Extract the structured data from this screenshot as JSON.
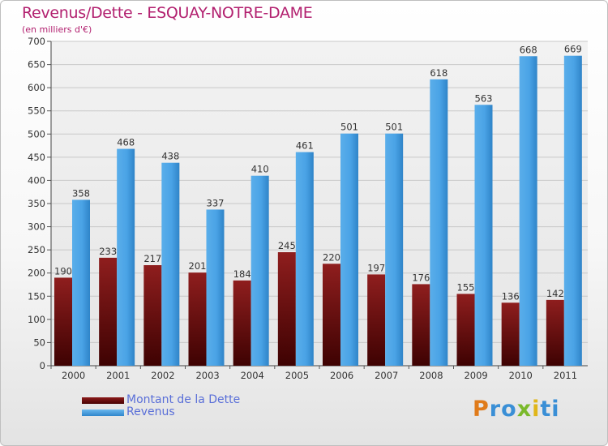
{
  "chart_data": {
    "type": "bar",
    "title": "Revenus/Dette - ESQUAY-NOTRE-DAME",
    "subtitle": "(en milliers d'€)",
    "xlabel": "",
    "ylabel": "",
    "ylim": [
      0,
      700
    ],
    "ytick_step": 50,
    "grid": true,
    "categories": [
      "2000",
      "2001",
      "2002",
      "2003",
      "2004",
      "2005",
      "2006",
      "2007",
      "2008",
      "2009",
      "2010",
      "2011"
    ],
    "series": [
      {
        "name": "Montant de la Dette",
        "color": "#6b0f0f",
        "values": [
          190,
          233,
          217,
          201,
          184,
          245,
          220,
          197,
          176,
          155,
          136,
          142
        ]
      },
      {
        "name": "Revenus",
        "color": "#4aa3e6",
        "values": [
          358,
          468,
          438,
          337,
          410,
          461,
          501,
          501,
          618,
          563,
          668,
          669
        ]
      }
    ],
    "legend_position": "bottom-left"
  },
  "logo": {
    "letters": [
      "P",
      "r",
      "o",
      "x",
      "i",
      "t",
      "i"
    ],
    "colors": [
      "#e07b1a",
      "#3a8fd6",
      "#3a8fd6",
      "#7ab92b",
      "#e0b61a",
      "#3a8fd6",
      "#3a8fd6"
    ]
  }
}
